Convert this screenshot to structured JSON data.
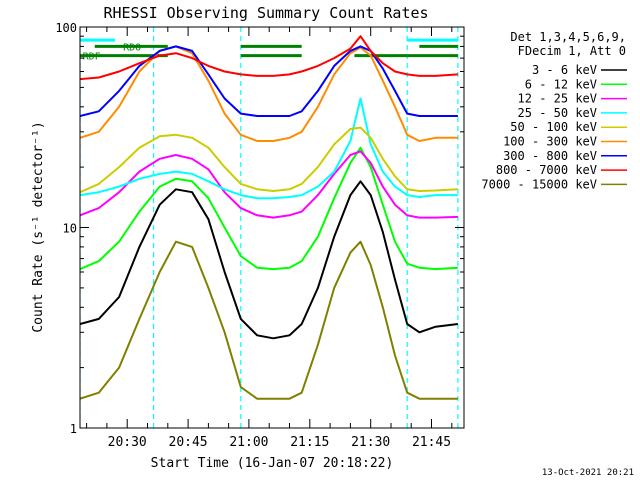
{
  "chart_data": {
    "type": "line",
    "title": "RHESSI Observing Summary Count Rates",
    "xlabel": "Start Time (16-Jan-07 20:18:22)",
    "ylabel": "Count Rate (s⁻¹ detector⁻¹)",
    "y_scale": "log",
    "ylim": [
      1,
      100
    ],
    "xlim": [
      "20:18:22",
      "21:53:00"
    ],
    "x_ticks": [
      "20:30",
      "20:45",
      "21:00",
      "21:15",
      "21:30",
      "21:45"
    ],
    "y_ticks": [
      "1",
      "10",
      "100"
    ],
    "legend_header": [
      "Det 1,3,4,5,6,9,",
      "FDecim 1, Att 0"
    ],
    "legend_position": "right",
    "annotations": [
      {
        "text": "RDO",
        "x": "20:29",
        "y": 80
      },
      {
        "text": "RDF",
        "x": "20:19",
        "y": 72
      }
    ],
    "footer": "13-Oct-2021 20:21",
    "day_night_markers": [
      "20:18:22",
      "20:36:30",
      "20:58:00",
      "21:39:00",
      "21:51:30"
    ],
    "day_night_color": "#00ffff",
    "flags_green": {
      "color": "#008000",
      "segments": [
        {
          "start": "20:18:22",
          "end": "20:40:00",
          "y": 72
        },
        {
          "start": "20:22:00",
          "end": "20:40:00",
          "y": 80
        },
        {
          "start": "20:58:00",
          "end": "21:13:00",
          "y": 72
        },
        {
          "start": "20:58:00",
          "end": "21:13:00",
          "y": 80
        },
        {
          "start": "21:26:00",
          "end": "21:39:00",
          "y": 72
        },
        {
          "start": "21:39:00",
          "end": "21:51:30",
          "y": 72
        },
        {
          "start": "21:42:00",
          "end": "21:51:30",
          "y": 80
        }
      ]
    },
    "flags_cyan": {
      "color": "#00ffff",
      "segments": [
        {
          "start": "20:18:22",
          "end": "20:27:00",
          "y": 86
        },
        {
          "start": "21:39:00",
          "end": "21:51:30",
          "y": 86
        }
      ]
    },
    "series": [
      {
        "name": "3 - 6 keV",
        "color": "#000000",
        "x": [
          "20:18:22",
          "20:23:00",
          "20:28:00",
          "20:33:00",
          "20:38:00",
          "20:42:00",
          "20:46:00",
          "20:50:00",
          "20:54:00",
          "20:58:00",
          "21:02:00",
          "21:06:00",
          "21:10:00",
          "21:13:00",
          "21:17:00",
          "21:21:00",
          "21:25:00",
          "21:27:30",
          "21:30:00",
          "21:33:00",
          "21:36:00",
          "21:39:00",
          "21:42:00",
          "21:46:00",
          "21:51:30"
        ],
        "y": [
          3.3,
          3.5,
          4.5,
          8,
          13,
          15.5,
          15,
          11,
          6,
          3.5,
          2.9,
          2.8,
          2.9,
          3.3,
          5,
          9,
          14.5,
          17,
          14.5,
          9.5,
          5.5,
          3.3,
          3,
          3.2,
          3.3
        ]
      },
      {
        "name": "6 - 12 keV",
        "color": "#00ff00",
        "x": [
          "20:18:22",
          "20:23:00",
          "20:28:00",
          "20:33:00",
          "20:38:00",
          "20:42:00",
          "20:46:00",
          "20:50:00",
          "20:54:00",
          "20:58:00",
          "21:02:00",
          "21:06:00",
          "21:10:00",
          "21:13:00",
          "21:17:00",
          "21:21:00",
          "21:25:00",
          "21:27:30",
          "21:30:00",
          "21:33:00",
          "21:36:00",
          "21:39:00",
          "21:42:00",
          "21:46:00",
          "21:51:30"
        ],
        "y": [
          6.2,
          6.8,
          8.5,
          12,
          16,
          17.5,
          17,
          14,
          10,
          7.2,
          6.3,
          6.2,
          6.3,
          6.8,
          9,
          14,
          21,
          25,
          20,
          13,
          8.5,
          6.6,
          6.3,
          6.2,
          6.3
        ]
      },
      {
        "name": "12 - 25 keV",
        "color": "#ff00ff",
        "x": [
          "20:18:22",
          "20:23:00",
          "20:28:00",
          "20:33:00",
          "20:38:00",
          "20:42:00",
          "20:46:00",
          "20:50:00",
          "20:54:00",
          "20:58:00",
          "21:02:00",
          "21:06:00",
          "21:10:00",
          "21:13:00",
          "21:17:00",
          "21:21:00",
          "21:25:00",
          "21:27:30",
          "21:30:00",
          "21:33:00",
          "21:36:00",
          "21:39:00",
          "21:42:00",
          "21:46:00",
          "21:51:30"
        ],
        "y": [
          11.5,
          12.5,
          15,
          19,
          22,
          23,
          22,
          19.5,
          15,
          12.5,
          11.5,
          11.2,
          11.5,
          12,
          14.5,
          18.5,
          23,
          24,
          21,
          16,
          13,
          11.5,
          11.2,
          11.2,
          11.3
        ]
      },
      {
        "name": "25 - 50 keV",
        "color": "#00ffff",
        "x": [
          "20:18:22",
          "20:23:00",
          "20:28:00",
          "20:33:00",
          "20:38:00",
          "20:42:00",
          "20:46:00",
          "20:50:00",
          "20:54:00",
          "20:58:00",
          "21:02:00",
          "21:06:00",
          "21:10:00",
          "21:13:00",
          "21:17:00",
          "21:21:00",
          "21:25:00",
          "21:27:30",
          "21:30:00",
          "21:33:00",
          "21:36:00",
          "21:39:00",
          "21:42:00",
          "21:46:00",
          "21:51:30"
        ],
        "y": [
          14.5,
          15,
          16,
          17.5,
          18.5,
          19,
          18.5,
          17,
          15.5,
          14.5,
          14,
          14,
          14.2,
          14.5,
          16,
          19,
          27,
          44,
          26,
          19,
          16,
          14.5,
          14.2,
          14.5,
          14.5
        ]
      },
      {
        "name": "50 - 100 keV",
        "color": "#cccc00",
        "x": [
          "20:18:22",
          "20:23:00",
          "20:28:00",
          "20:33:00",
          "20:38:00",
          "20:42:00",
          "20:46:00",
          "20:50:00",
          "20:54:00",
          "20:58:00",
          "21:02:00",
          "21:06:00",
          "21:10:00",
          "21:13:00",
          "21:17:00",
          "21:21:00",
          "21:25:00",
          "21:27:30",
          "21:30:00",
          "21:33:00",
          "21:36:00",
          "21:39:00",
          "21:42:00",
          "21:46:00",
          "21:51:30"
        ],
        "y": [
          15,
          16.5,
          20,
          25,
          28.5,
          29,
          28,
          25,
          20,
          16.5,
          15.5,
          15.2,
          15.5,
          16.5,
          20,
          26,
          31,
          31.5,
          28,
          22,
          18,
          15.5,
          15.2,
          15.3,
          15.5
        ]
      },
      {
        "name": "100 - 300 keV",
        "color": "#ff8c00",
        "x": [
          "20:18:22",
          "20:23:00",
          "20:28:00",
          "20:33:00",
          "20:38:00",
          "20:42:00",
          "20:46:00",
          "20:50:00",
          "20:54:00",
          "20:58:00",
          "21:02:00",
          "21:06:00",
          "21:10:00",
          "21:13:00",
          "21:17:00",
          "21:21:00",
          "21:25:00",
          "21:27:30",
          "21:30:00",
          "21:33:00",
          "21:36:00",
          "21:39:00",
          "21:42:00",
          "21:46:00",
          "21:51:30"
        ],
        "y": [
          28,
          30,
          40,
          60,
          76,
          80,
          74,
          54,
          37,
          29,
          27,
          27,
          28,
          30,
          40,
          58,
          74,
          79,
          72,
          54,
          40,
          29,
          27,
          28,
          28
        ]
      },
      {
        "name": "300 - 800 keV",
        "color": "#0000ff",
        "x": [
          "20:18:22",
          "20:23:00",
          "20:28:00",
          "20:33:00",
          "20:38:00",
          "20:42:00",
          "20:46:00",
          "20:50:00",
          "20:54:00",
          "20:58:00",
          "21:02:00",
          "21:06:00",
          "21:10:00",
          "21:13:00",
          "21:17:00",
          "21:21:00",
          "21:25:00",
          "21:27:30",
          "21:30:00",
          "21:33:00",
          "21:36:00",
          "21:39:00",
          "21:42:00",
          "21:46:00",
          "21:51:30"
        ],
        "y": [
          36,
          38,
          48,
          64,
          76,
          80,
          76,
          58,
          44,
          37,
          36,
          36,
          36,
          38,
          48,
          64,
          76,
          80,
          76,
          62,
          48,
          37,
          36,
          36,
          36
        ]
      },
      {
        "name": "800 - 7000 keV",
        "color": "#ff0000",
        "x": [
          "20:18:22",
          "20:23:00",
          "20:28:00",
          "20:33:00",
          "20:38:00",
          "20:42:00",
          "20:46:00",
          "20:50:00",
          "20:54:00",
          "20:58:00",
          "21:02:00",
          "21:06:00",
          "21:10:00",
          "21:13:00",
          "21:17:00",
          "21:21:00",
          "21:25:00",
          "21:27:30",
          "21:30:00",
          "21:33:00",
          "21:36:00",
          "21:39:00",
          "21:42:00",
          "21:46:00",
          "21:51:30"
        ],
        "y": [
          55,
          56,
          60,
          66,
          72,
          74,
          70,
          64,
          60,
          58,
          57,
          57,
          58,
          60,
          64,
          70,
          78,
          90,
          76,
          66,
          60,
          58,
          57,
          57,
          58
        ]
      },
      {
        "name": "7000 - 15000 keV",
        "color": "#808000",
        "x": [
          "20:18:22",
          "20:23:00",
          "20:28:00",
          "20:33:00",
          "20:38:00",
          "20:42:00",
          "20:46:00",
          "20:50:00",
          "20:54:00",
          "20:58:00",
          "21:02:00",
          "21:06:00",
          "21:10:00",
          "21:13:00",
          "21:17:00",
          "21:21:00",
          "21:25:00",
          "21:27:30",
          "21:30:00",
          "21:33:00",
          "21:36:00",
          "21:39:00",
          "21:42:00",
          "21:46:00",
          "21:51:30"
        ],
        "y": [
          1.4,
          1.5,
          2,
          3.5,
          6,
          8.5,
          8,
          5,
          3,
          1.6,
          1.4,
          1.4,
          1.4,
          1.5,
          2.6,
          5,
          7.5,
          8.5,
          6.5,
          4,
          2.3,
          1.5,
          1.4,
          1.4,
          1.4
        ]
      }
    ]
  }
}
